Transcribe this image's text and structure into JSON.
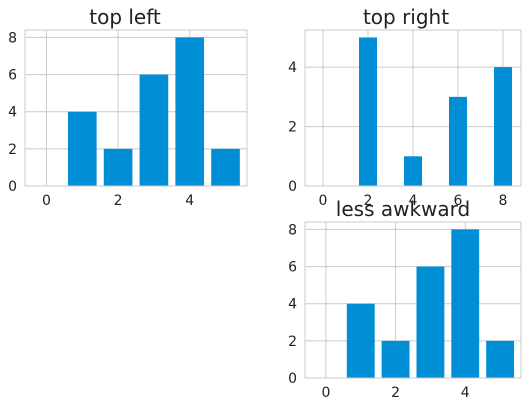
{
  "accent_color": "#008fd5",
  "chart_data": [
    {
      "type": "bar",
      "title": "top left",
      "x": [
        0,
        1,
        2,
        3,
        4,
        5
      ],
      "values": [
        0,
        4,
        2,
        6,
        8,
        2
      ],
      "xticks": [
        0,
        2,
        4
      ],
      "yticks": [
        0,
        2,
        4,
        6,
        8
      ],
      "xlim": [
        -0.6,
        5.6
      ],
      "ylim": [
        0,
        8.4
      ],
      "bar_width": 0.8,
      "grid": true
    },
    {
      "type": "bar",
      "title": "top right",
      "x": [
        0,
        2,
        4,
        6,
        8
      ],
      "values": [
        0,
        5,
        1,
        3,
        4
      ],
      "xticks": [
        0,
        2,
        4,
        6,
        8
      ],
      "yticks": [
        0,
        2,
        4
      ],
      "xlim": [
        -0.8,
        8.8
      ],
      "ylim": [
        0,
        5.25
      ],
      "bar_width": 0.8,
      "grid": true
    },
    {
      "type": "bar",
      "title": "less awkward",
      "x": [
        0,
        1,
        2,
        3,
        4,
        5
      ],
      "values": [
        0,
        4,
        2,
        6,
        8,
        2
      ],
      "xticks": [
        0,
        2,
        4
      ],
      "yticks": [
        0,
        2,
        4,
        6,
        8
      ],
      "xlim": [
        -0.6,
        5.6
      ],
      "ylim": [
        0,
        8.4
      ],
      "bar_width": 0.8,
      "grid": true
    }
  ]
}
